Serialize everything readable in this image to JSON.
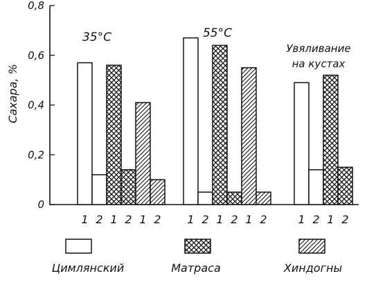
{
  "chart_data": {
    "type": "bar",
    "ylabel": "Сахара, %",
    "ylim": [
      0,
      0.8
    ],
    "y_ticks": [
      "0",
      "0,2",
      "0,4",
      "0,6",
      "0,8"
    ],
    "grid": false,
    "legend_position": "bottom",
    "groups": [
      {
        "label": "35°C",
        "pairs": [
          {
            "variety": "Цимлянский",
            "values": [
              0.57,
              0.12
            ]
          },
          {
            "variety": "Матраса",
            "values": [
              0.56,
              0.14
            ]
          },
          {
            "variety": "Хиндогны",
            "values": [
              0.41,
              0.1
            ]
          }
        ]
      },
      {
        "label": "55°C",
        "pairs": [
          {
            "variety": "Цимлянский",
            "values": [
              0.67,
              0.05
            ]
          },
          {
            "variety": "Матраса",
            "values": [
              0.64,
              0.05
            ]
          },
          {
            "variety": "Хиндогны",
            "values": [
              0.55,
              0.05
            ]
          }
        ]
      },
      {
        "label_lines": [
          "Увяливание",
          "на кустах"
        ],
        "pairs": [
          {
            "variety": "Цимлянский",
            "values": [
              0.49,
              0.14
            ]
          },
          {
            "variety": "Матраса",
            "values": [
              0.52,
              0.15
            ]
          }
        ]
      }
    ],
    "x_tick_labels": [
      "1",
      "2"
    ],
    "legend": [
      {
        "name": "Цимлянский",
        "pattern": "empty"
      },
      {
        "name": "Матраса",
        "pattern": "cross"
      },
      {
        "name": "Хиндогны",
        "pattern": "hatch"
      }
    ]
  },
  "colors": {
    "ink": "#111111",
    "background": "#ffffff"
  }
}
